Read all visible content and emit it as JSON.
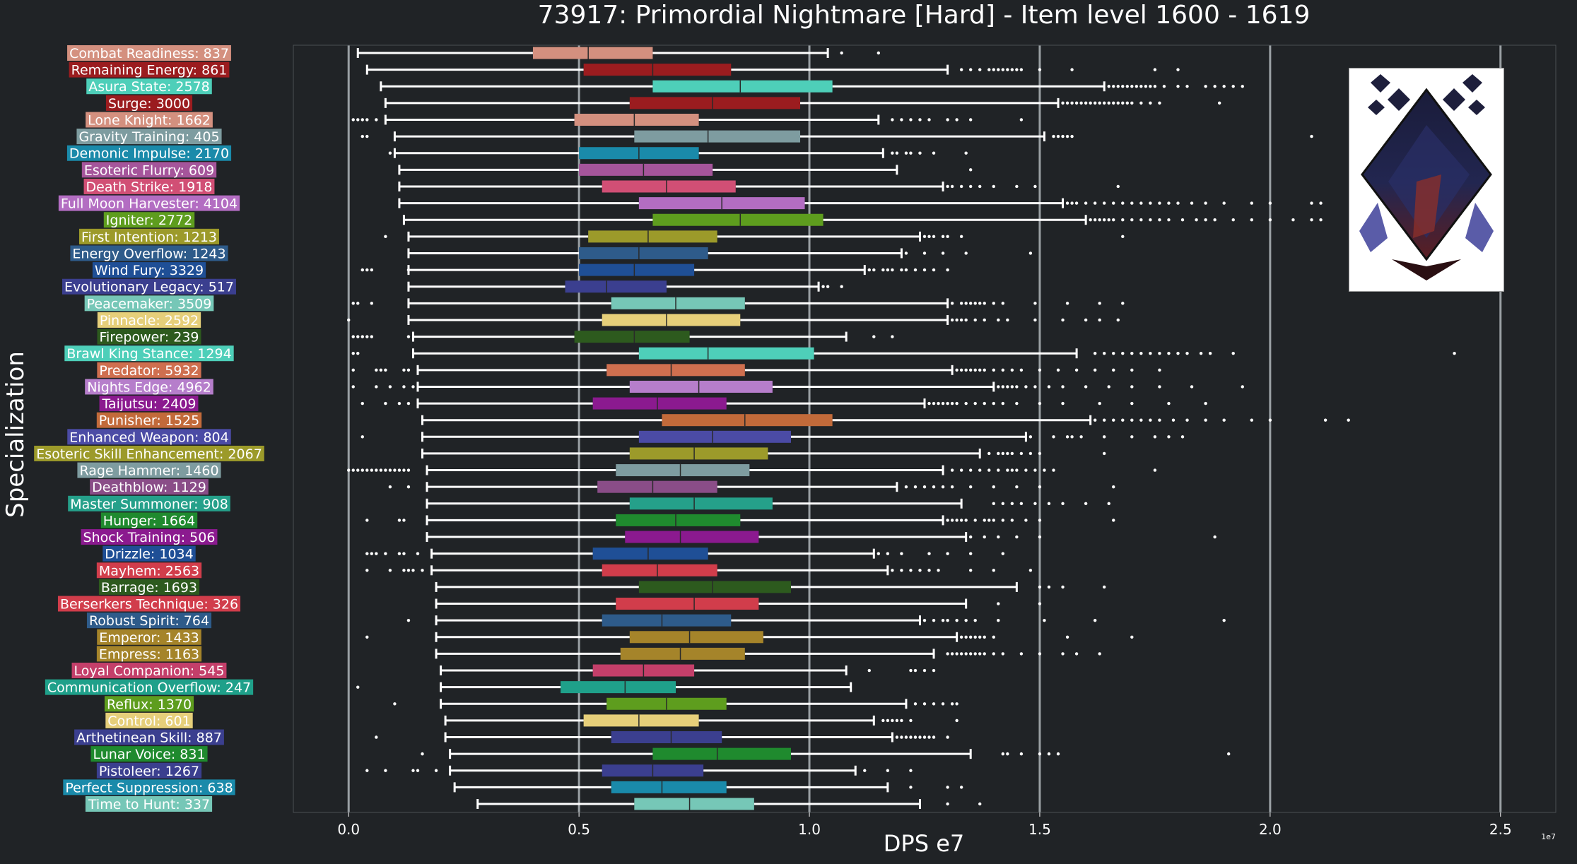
{
  "chart_data": {
    "type": "boxplot",
    "orientation": "horizontal",
    "title": "73917: Primordial Nightmare [Hard] - Item level 1600 - 1619",
    "xlabel": "DPS e7",
    "ylabel": "Specialization",
    "x_scale_note": "1e7",
    "xlim": [
      -0.12,
      2.62
    ],
    "xticks": [
      0.0,
      0.5,
      1.0,
      1.5,
      2.0,
      2.5
    ],
    "xtick_labels": [
      "0.0",
      "0.5",
      "1.0",
      "1.5",
      "2.0",
      "2.5"
    ],
    "grid": "vertical",
    "colors": {
      "background": "#202326",
      "gridline": "#9aa0a4",
      "whisker": "#ffffff",
      "text": "#ffffff"
    },
    "series": [
      {
        "name": "Combat Readiness: 837",
        "color": "#d4907f",
        "whisker_low": 0.02,
        "q1": 0.4,
        "median": 0.52,
        "q3": 0.66,
        "whisker_high": 1.04,
        "outliers": [
          1.07,
          1.15
        ]
      },
      {
        "name": "Remaining Energy: 861",
        "color": "#9b1c1f",
        "whisker_low": 0.04,
        "q1": 0.51,
        "median": 0.66,
        "q3": 0.83,
        "whisker_high": 1.3,
        "outliers": [
          1.33,
          1.35,
          1.37,
          1.39,
          1.4,
          1.41,
          1.42,
          1.43,
          1.44,
          1.45,
          1.46,
          1.5,
          1.57,
          1.75,
          1.8
        ]
      },
      {
        "name": "Asura State: 2578",
        "color": "#4ecfb9",
        "whisker_low": 0.07,
        "q1": 0.66,
        "median": 0.85,
        "q3": 1.05,
        "whisker_high": 1.64,
        "outliers": [
          1.65,
          1.66,
          1.67,
          1.68,
          1.69,
          1.7,
          1.71,
          1.72,
          1.73,
          1.74,
          1.75,
          1.77,
          1.8,
          1.82,
          1.86,
          1.88,
          1.9,
          1.92,
          1.94
        ]
      },
      {
        "name": "Surge: 3000",
        "color": "#9b1c1f",
        "whisker_low": 0.08,
        "q1": 0.61,
        "median": 0.79,
        "q3": 0.98,
        "whisker_high": 1.54,
        "outliers": [
          1.55,
          1.56,
          1.57,
          1.58,
          1.59,
          1.6,
          1.61,
          1.62,
          1.63,
          1.64,
          1.65,
          1.66,
          1.67,
          1.68,
          1.69,
          1.7,
          1.72,
          1.74,
          1.76,
          1.89
        ]
      },
      {
        "name": "Lone Knight: 1662",
        "color": "#d4907f",
        "whisker_low": 0.08,
        "q1": 0.49,
        "median": 0.62,
        "q3": 0.76,
        "whisker_high": 1.15,
        "outliers": [
          0.01,
          0.02,
          0.03,
          0.04,
          0.06,
          1.18,
          1.2,
          1.22,
          1.24,
          1.26,
          1.3,
          1.32,
          1.35,
          1.46
        ]
      },
      {
        "name": "Gravity Training: 405",
        "color": "#7e9ca0",
        "whisker_low": 0.1,
        "q1": 0.62,
        "median": 0.78,
        "q3": 0.98,
        "whisker_high": 1.51,
        "outliers": [
          0.03,
          0.04,
          1.53,
          1.54,
          1.55,
          1.56,
          1.57,
          2.09
        ]
      },
      {
        "name": "Demonic Impulse: 2170",
        "color": "#1a8aaa",
        "whisker_low": 0.1,
        "q1": 0.5,
        "median": 0.63,
        "q3": 0.76,
        "whisker_high": 1.16,
        "outliers": [
          0.09,
          1.18,
          1.19,
          1.21,
          1.22,
          1.24,
          1.27,
          1.34
        ]
      },
      {
        "name": "Esoteric Flurry: 609",
        "color": "#a5559b",
        "whisker_low": 0.11,
        "q1": 0.5,
        "median": 0.64,
        "q3": 0.79,
        "whisker_high": 1.19,
        "outliers": [
          1.35
        ]
      },
      {
        "name": "Death Strike: 1918",
        "color": "#d14f75",
        "whisker_low": 0.11,
        "q1": 0.55,
        "median": 0.69,
        "q3": 0.84,
        "whisker_high": 1.29,
        "outliers": [
          1.3,
          1.31,
          1.33,
          1.35,
          1.37,
          1.4,
          1.45,
          1.49,
          1.67
        ]
      },
      {
        "name": "Full Moon Harvester: 4104",
        "color": "#b36dc2",
        "whisker_low": 0.11,
        "q1": 0.63,
        "median": 0.81,
        "q3": 0.99,
        "whisker_high": 1.55,
        "outliers": [
          1.56,
          1.57,
          1.58,
          1.6,
          1.62,
          1.64,
          1.66,
          1.68,
          1.7,
          1.72,
          1.74,
          1.76,
          1.78,
          1.8,
          1.83,
          1.86,
          1.9,
          1.96,
          2.0,
          2.09,
          2.11
        ]
      },
      {
        "name": "Igniter: 2772",
        "color": "#5e9d1e",
        "whisker_low": 0.12,
        "q1": 0.66,
        "median": 0.85,
        "q3": 1.03,
        "whisker_high": 1.6,
        "outliers": [
          1.61,
          1.62,
          1.63,
          1.64,
          1.65,
          1.66,
          1.68,
          1.7,
          1.72,
          1.74,
          1.76,
          1.78,
          1.81,
          1.84,
          1.86,
          1.88,
          1.92,
          1.96,
          2.0,
          2.05,
          2.09,
          2.11
        ]
      },
      {
        "name": "First Intention: 1213",
        "color": "#9c9a2a",
        "whisker_low": 0.13,
        "q1": 0.52,
        "median": 0.65,
        "q3": 0.8,
        "whisker_high": 1.24,
        "outliers": [
          0.08,
          1.25,
          1.26,
          1.27,
          1.29,
          1.3,
          1.33,
          1.68
        ]
      },
      {
        "name": "Energy Overflow: 1243",
        "color": "#2e5b8a",
        "whisker_low": 0.13,
        "q1": 0.5,
        "median": 0.63,
        "q3": 0.78,
        "whisker_high": 1.2,
        "outliers": [
          1.21,
          1.25,
          1.29,
          1.34,
          1.48
        ]
      },
      {
        "name": "Wind Fury: 3329",
        "color": "#1f4f96",
        "whisker_low": 0.13,
        "q1": 0.5,
        "median": 0.62,
        "q3": 0.75,
        "whisker_high": 1.12,
        "outliers": [
          0.03,
          0.04,
          0.05,
          0.13,
          1.13,
          1.14,
          1.16,
          1.17,
          1.18,
          1.2,
          1.21,
          1.23,
          1.25,
          1.27,
          1.3
        ]
      },
      {
        "name": "Evolutionary Legacy: 517",
        "color": "#3b3f8f",
        "whisker_low": 0.13,
        "q1": 0.47,
        "median": 0.56,
        "q3": 0.69,
        "whisker_high": 1.02,
        "outliers": [
          1.03,
          1.04,
          1.07
        ]
      },
      {
        "name": "Peacemaker: 3509",
        "color": "#76c7b7",
        "whisker_low": 0.13,
        "q1": 0.57,
        "median": 0.71,
        "q3": 0.86,
        "whisker_high": 1.3,
        "outliers": [
          0.01,
          0.02,
          0.05,
          1.31,
          1.33,
          1.34,
          1.35,
          1.36,
          1.37,
          1.38,
          1.4,
          1.42,
          1.49,
          1.56,
          1.63,
          1.68
        ]
      },
      {
        "name": "Pinnacle: 2592",
        "color": "#e6cf7a",
        "whisker_low": 0.13,
        "q1": 0.55,
        "median": 0.69,
        "q3": 0.85,
        "whisker_high": 1.3,
        "outliers": [
          0.0,
          1.31,
          1.32,
          1.33,
          1.34,
          1.36,
          1.38,
          1.41,
          1.43,
          1.49,
          1.55,
          1.6,
          1.63,
          1.67
        ]
      },
      {
        "name": "Firepower: 239",
        "color": "#2d5a1e",
        "whisker_low": 0.14,
        "q1": 0.49,
        "median": 0.62,
        "q3": 0.74,
        "whisker_high": 1.08,
        "outliers": [
          0.01,
          0.02,
          0.03,
          0.04,
          0.05,
          0.13,
          1.14,
          1.18
        ]
      },
      {
        "name": "Brawl King Stance: 1294",
        "color": "#4ecfb9",
        "whisker_low": 0.14,
        "q1": 0.63,
        "median": 0.78,
        "q3": 1.01,
        "whisker_high": 1.58,
        "outliers": [
          0.01,
          0.02,
          1.62,
          1.64,
          1.66,
          1.68,
          1.7,
          1.72,
          1.74,
          1.76,
          1.78,
          1.8,
          1.82,
          1.85,
          1.87,
          1.92,
          2.4
        ]
      },
      {
        "name": "Predator: 5932",
        "color": "#cf6f4f",
        "whisker_low": 0.15,
        "q1": 0.56,
        "median": 0.7,
        "q3": 0.86,
        "whisker_high": 1.31,
        "outliers": [
          0.01,
          0.06,
          0.07,
          0.08,
          0.12,
          0.13,
          1.32,
          1.33,
          1.34,
          1.35,
          1.36,
          1.37,
          1.38,
          1.4,
          1.42,
          1.44,
          1.46,
          1.5,
          1.54,
          1.58,
          1.62,
          1.66,
          1.7,
          1.76
        ]
      },
      {
        "name": "Nights Edge: 4962",
        "color": "#b67ecb",
        "whisker_low": 0.15,
        "q1": 0.61,
        "median": 0.76,
        "q3": 0.92,
        "whisker_high": 1.4,
        "outliers": [
          0.01,
          0.06,
          0.09,
          0.12,
          0.14,
          1.41,
          1.42,
          1.43,
          1.44,
          1.45,
          1.47,
          1.49,
          1.52,
          1.55,
          1.6,
          1.65,
          1.7,
          1.76,
          1.83,
          1.94
        ]
      },
      {
        "name": "Taijutsu: 2409",
        "color": "#8b1a8f",
        "whisker_low": 0.15,
        "q1": 0.53,
        "median": 0.67,
        "q3": 0.82,
        "whisker_high": 1.25,
        "outliers": [
          0.03,
          0.08,
          0.11,
          0.13,
          1.26,
          1.27,
          1.28,
          1.29,
          1.3,
          1.31,
          1.32,
          1.34,
          1.36,
          1.38,
          1.4,
          1.42,
          1.45,
          1.5,
          1.55,
          1.63,
          1.7,
          1.78,
          1.86
        ]
      },
      {
        "name": "Punisher: 1525",
        "color": "#c26a3a",
        "whisker_low": 0.16,
        "q1": 0.68,
        "median": 0.86,
        "q3": 1.05,
        "whisker_high": 1.61,
        "outliers": [
          1.62,
          1.64,
          1.66,
          1.68,
          1.7,
          1.72,
          1.74,
          1.76,
          1.79,
          1.82,
          1.86,
          1.9,
          1.96,
          2.0,
          2.12,
          2.17
        ]
      },
      {
        "name": "Enhanced Weapon: 804",
        "color": "#4b4ba5",
        "whisker_low": 0.16,
        "q1": 0.63,
        "median": 0.79,
        "q3": 0.96,
        "whisker_high": 1.47,
        "outliers": [
          0.03,
          1.48,
          1.53,
          1.56,
          1.57,
          1.59,
          1.64,
          1.7,
          1.75,
          1.78,
          1.81
        ]
      },
      {
        "name": "Esoteric Skill Enhancement: 2067",
        "color": "#9c9a2a",
        "whisker_low": 0.16,
        "q1": 0.61,
        "median": 0.75,
        "q3": 0.91,
        "whisker_high": 1.37,
        "outliers": [
          1.39,
          1.41,
          1.42,
          1.43,
          1.44,
          1.46,
          1.48,
          1.5,
          1.64
        ]
      },
      {
        "name": "Rage Hammer: 1460",
        "color": "#7e9ca0",
        "whisker_low": 0.17,
        "q1": 0.58,
        "median": 0.72,
        "q3": 0.87,
        "whisker_high": 1.29,
        "outliers": [
          0.0,
          0.01,
          0.02,
          0.03,
          0.04,
          0.05,
          0.06,
          0.07,
          0.08,
          0.09,
          0.1,
          0.11,
          0.12,
          0.13,
          1.31,
          1.33,
          1.35,
          1.37,
          1.39,
          1.41,
          1.43,
          1.44,
          1.45,
          1.47,
          1.49,
          1.51,
          1.53,
          1.75
        ]
      },
      {
        "name": "Deathblow: 1129",
        "color": "#8a4d88",
        "whisker_low": 0.17,
        "q1": 0.54,
        "median": 0.66,
        "q3": 0.8,
        "whisker_high": 1.19,
        "outliers": [
          0.09,
          0.13,
          1.21,
          1.23,
          1.25,
          1.27,
          1.29,
          1.31,
          1.35,
          1.4,
          1.45,
          1.5,
          1.66
        ]
      },
      {
        "name": "Master Summoner: 908",
        "color": "#25a08a",
        "whisker_low": 0.17,
        "q1": 0.61,
        "median": 0.75,
        "q3": 0.92,
        "whisker_high": 1.33,
        "outliers": [
          1.4,
          1.42,
          1.44,
          1.46,
          1.49,
          1.52,
          1.55,
          1.6,
          1.65
        ]
      },
      {
        "name": "Hunger: 1664",
        "color": "#1f8a2e",
        "whisker_low": 0.17,
        "q1": 0.58,
        "median": 0.71,
        "q3": 0.85,
        "whisker_high": 1.29,
        "outliers": [
          0.04,
          0.11,
          0.12,
          1.3,
          1.31,
          1.32,
          1.33,
          1.34,
          1.36,
          1.38,
          1.39,
          1.4,
          1.42,
          1.44,
          1.47,
          1.5,
          1.66
        ]
      },
      {
        "name": "Shock Training: 506",
        "color": "#8b1a8f",
        "whisker_low": 0.17,
        "q1": 0.6,
        "median": 0.72,
        "q3": 0.89,
        "whisker_high": 1.34,
        "outliers": [
          1.35,
          1.38,
          1.41,
          1.45,
          1.5,
          1.88
        ]
      },
      {
        "name": "Drizzle: 1034",
        "color": "#1f4f96",
        "whisker_low": 0.18,
        "q1": 0.53,
        "median": 0.65,
        "q3": 0.78,
        "whisker_high": 1.14,
        "outliers": [
          0.04,
          0.05,
          0.06,
          0.08,
          0.11,
          0.12,
          0.15,
          1.15,
          1.17,
          1.2,
          1.26,
          1.3,
          1.35,
          1.42
        ]
      },
      {
        "name": "Mayhem: 2563",
        "color": "#d13d4b",
        "whisker_low": 0.18,
        "q1": 0.55,
        "median": 0.67,
        "q3": 0.8,
        "whisker_high": 1.17,
        "outliers": [
          0.04,
          0.09,
          0.12,
          0.13,
          0.14,
          0.16,
          1.18,
          1.2,
          1.22,
          1.24,
          1.26,
          1.28,
          1.35,
          1.4,
          1.48
        ]
      },
      {
        "name": "Barrage: 1693",
        "color": "#2d5a1e",
        "whisker_low": 0.19,
        "q1": 0.63,
        "median": 0.79,
        "q3": 0.96,
        "whisker_high": 1.45,
        "outliers": [
          1.5,
          1.52,
          1.55,
          1.64
        ]
      },
      {
        "name": "Berserkers Technique: 326",
        "color": "#d13d4b",
        "whisker_low": 0.19,
        "q1": 0.58,
        "median": 0.75,
        "q3": 0.89,
        "whisker_high": 1.34,
        "outliers": [
          1.41,
          1.5
        ]
      },
      {
        "name": "Robust Spirit: 764",
        "color": "#2e5b8a",
        "whisker_low": 0.19,
        "q1": 0.55,
        "median": 0.68,
        "q3": 0.83,
        "whisker_high": 1.24,
        "outliers": [
          0.13,
          1.25,
          1.27,
          1.29,
          1.3,
          1.32,
          1.34,
          1.36,
          1.41,
          1.51,
          1.62,
          1.9
        ]
      },
      {
        "name": "Emperor: 1433",
        "color": "#a5842a",
        "whisker_low": 0.19,
        "q1": 0.61,
        "median": 0.74,
        "q3": 0.9,
        "whisker_high": 1.32,
        "outliers": [
          0.04,
          1.33,
          1.34,
          1.35,
          1.36,
          1.37,
          1.38,
          1.4,
          1.56,
          1.7
        ]
      },
      {
        "name": "Empress: 1163",
        "color": "#a5842a",
        "whisker_low": 0.19,
        "q1": 0.59,
        "median": 0.72,
        "q3": 0.86,
        "whisker_high": 1.27,
        "outliers": [
          1.3,
          1.31,
          1.32,
          1.33,
          1.34,
          1.35,
          1.36,
          1.37,
          1.38,
          1.4,
          1.42,
          1.46,
          1.5,
          1.55,
          1.58,
          1.63
        ]
      },
      {
        "name": "Loyal Companion: 545",
        "color": "#c43f6a",
        "whisker_low": 0.2,
        "q1": 0.53,
        "median": 0.64,
        "q3": 0.75,
        "whisker_high": 1.08,
        "outliers": [
          1.13,
          1.22,
          1.23,
          1.25,
          1.27
        ]
      },
      {
        "name": "Communication Overflow: 247",
        "color": "#1fa08a",
        "whisker_low": 0.2,
        "q1": 0.46,
        "median": 0.6,
        "q3": 0.71,
        "whisker_high": 1.09,
        "outliers": [
          0.02
        ]
      },
      {
        "name": "Reflux: 1370",
        "color": "#5e9d1e",
        "whisker_low": 0.2,
        "q1": 0.56,
        "median": 0.69,
        "q3": 0.82,
        "whisker_high": 1.21,
        "outliers": [
          0.1,
          1.23,
          1.25,
          1.27,
          1.29,
          1.31,
          1.32
        ]
      },
      {
        "name": "Control: 601",
        "color": "#e6cf7a",
        "whisker_low": 0.21,
        "q1": 0.51,
        "median": 0.63,
        "q3": 0.76,
        "whisker_high": 1.14,
        "outliers": [
          1.16,
          1.17,
          1.18,
          1.19,
          1.2,
          1.22,
          1.32
        ]
      },
      {
        "name": "Arthetinean Skill: 887",
        "color": "#3b3f8f",
        "whisker_low": 0.21,
        "q1": 0.57,
        "median": 0.7,
        "q3": 0.81,
        "whisker_high": 1.18,
        "outliers": [
          0.06,
          1.19,
          1.2,
          1.21,
          1.22,
          1.23,
          1.24,
          1.25,
          1.26,
          1.27,
          1.3
        ]
      },
      {
        "name": "Lunar Voice: 831",
        "color": "#1f8a2e",
        "whisker_low": 0.22,
        "q1": 0.66,
        "median": 0.8,
        "q3": 0.96,
        "whisker_high": 1.35,
        "outliers": [
          0.16,
          1.42,
          1.43,
          1.46,
          1.5,
          1.52,
          1.54,
          1.91
        ]
      },
      {
        "name": "Pistoleer: 1267",
        "color": "#3b3f8f",
        "whisker_low": 0.22,
        "q1": 0.55,
        "median": 0.66,
        "q3": 0.77,
        "whisker_high": 1.1,
        "outliers": [
          0.04,
          0.08,
          0.14,
          0.15,
          0.19,
          1.12,
          1.17,
          1.22
        ]
      },
      {
        "name": "Perfect Suppression: 638",
        "color": "#1a8aaa",
        "whisker_low": 0.23,
        "q1": 0.57,
        "median": 0.68,
        "q3": 0.82,
        "whisker_high": 1.17,
        "outliers": [
          1.22,
          1.3,
          1.33
        ]
      },
      {
        "name": "Time to Hunt: 337",
        "color": "#76c7b7",
        "whisker_low": 0.28,
        "q1": 0.62,
        "median": 0.74,
        "q3": 0.88,
        "whisker_high": 1.24,
        "outliers": [
          1.3,
          1.37
        ]
      }
    ]
  }
}
